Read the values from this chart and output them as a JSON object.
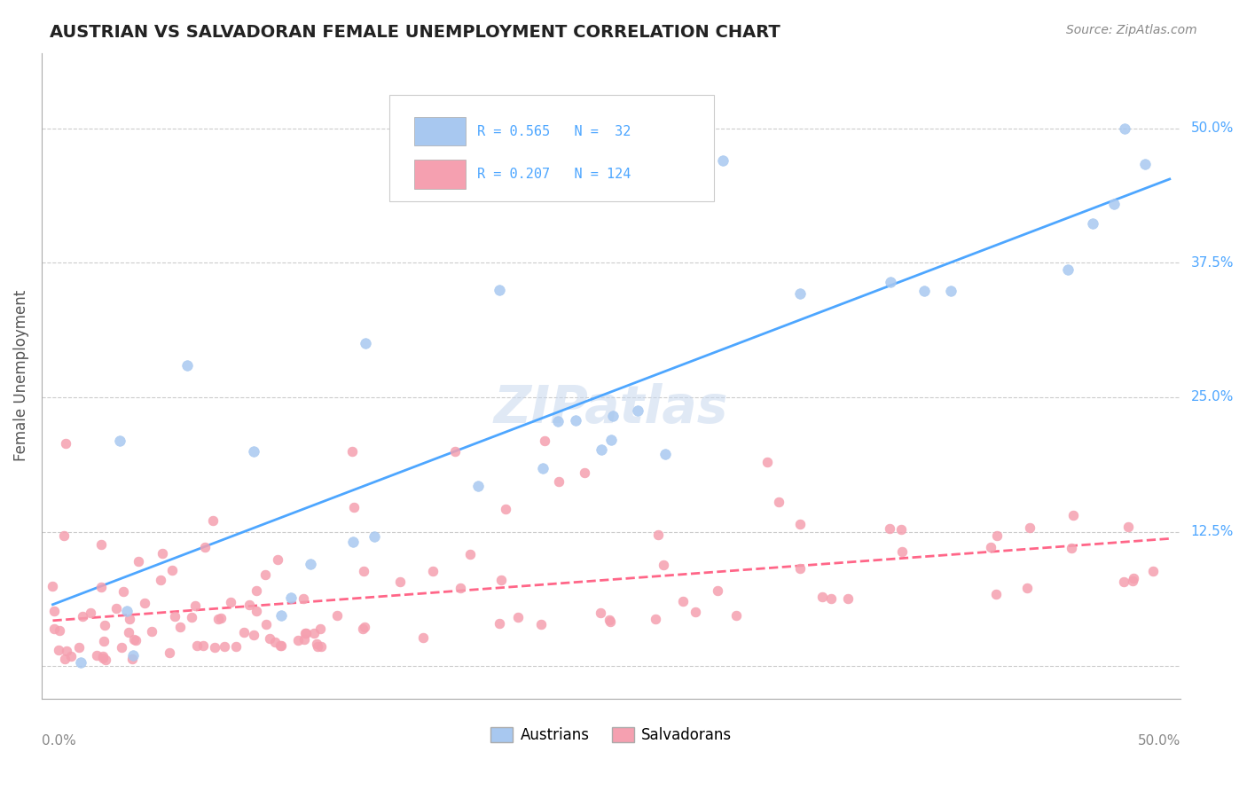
{
  "title": "AUSTRIAN VS SALVADORAN FEMALE UNEMPLOYMENT CORRELATION CHART",
  "source": "Source: ZipAtlas.com",
  "ylabel": "Female Unemployment",
  "ytick_labels": [
    "12.5%",
    "25.0%",
    "37.5%",
    "50.0%"
  ],
  "ytick_values": [
    0.125,
    0.25,
    0.375,
    0.5
  ],
  "xlim": [
    0.0,
    0.5
  ],
  "ylim": [
    -0.03,
    0.57
  ],
  "austrian_R": 0.565,
  "austrian_N": 32,
  "salvadoran_R": 0.207,
  "salvadoran_N": 124,
  "austrian_color": "#a8c8f0",
  "salvadoran_color": "#f5a0b0",
  "austrian_line_color": "#4da6ff",
  "salvadoran_line_color": "#ff6688",
  "legend_label_austrians": "Austrians",
  "legend_label_salvadorans": "Salvadorans",
  "watermark": "ZIPatlas",
  "background_color": "#ffffff",
  "grid_color": "#cccccc"
}
